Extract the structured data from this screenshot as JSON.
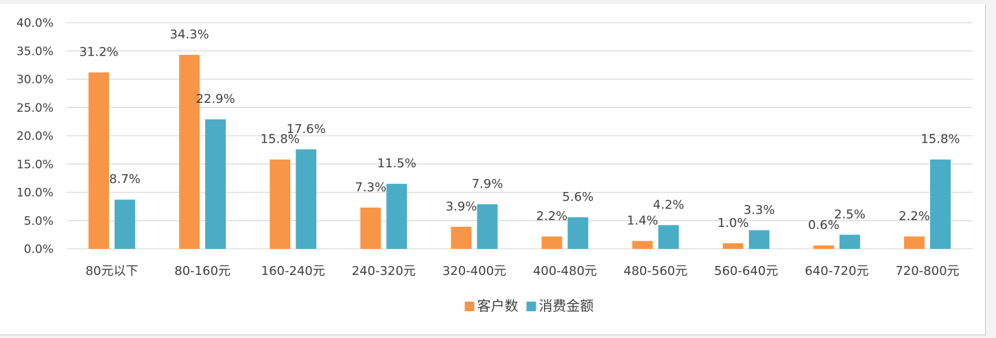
{
  "chart_data": {
    "type": "bar",
    "categories": [
      "80元以下",
      "80-160元",
      "160-240元",
      "240-320元",
      "320-400元",
      "400-480元",
      "480-560元",
      "560-640元",
      "640-720元",
      "720-800元"
    ],
    "series": [
      {
        "name": "客户数",
        "color": "#f79646",
        "values": [
          31.2,
          34.3,
          15.8,
          7.3,
          3.9,
          2.2,
          1.4,
          1.0,
          0.6,
          2.2
        ],
        "labels": [
          "31.2%",
          "34.3%",
          "15.8%",
          "7.3%",
          "3.9%",
          "2.2%",
          "1.4%",
          "1.0%",
          "0.6%",
          "2.2%"
        ]
      },
      {
        "name": "消费金额",
        "color": "#4bacc6",
        "values": [
          8.7,
          22.9,
          17.6,
          11.5,
          7.9,
          5.6,
          4.2,
          3.3,
          2.5,
          15.8
        ],
        "labels": [
          "8.7%",
          "22.9%",
          "17.6%",
          "11.5%",
          "7.9%",
          "5.6%",
          "4.2%",
          "3.3%",
          "2.5%",
          "15.8%"
        ]
      }
    ],
    "y_ticks": [
      0,
      5,
      10,
      15,
      20,
      25,
      30,
      35,
      40
    ],
    "y_tick_labels": [
      "0.0%",
      "5.0%",
      "10.0%",
      "15.0%",
      "20.0%",
      "25.0%",
      "30.0%",
      "35.0%",
      "40.0%"
    ],
    "ylim": [
      0,
      40
    ],
    "grid": true,
    "legend": "bottom",
    "title": "",
    "xlabel": "",
    "ylabel": ""
  }
}
